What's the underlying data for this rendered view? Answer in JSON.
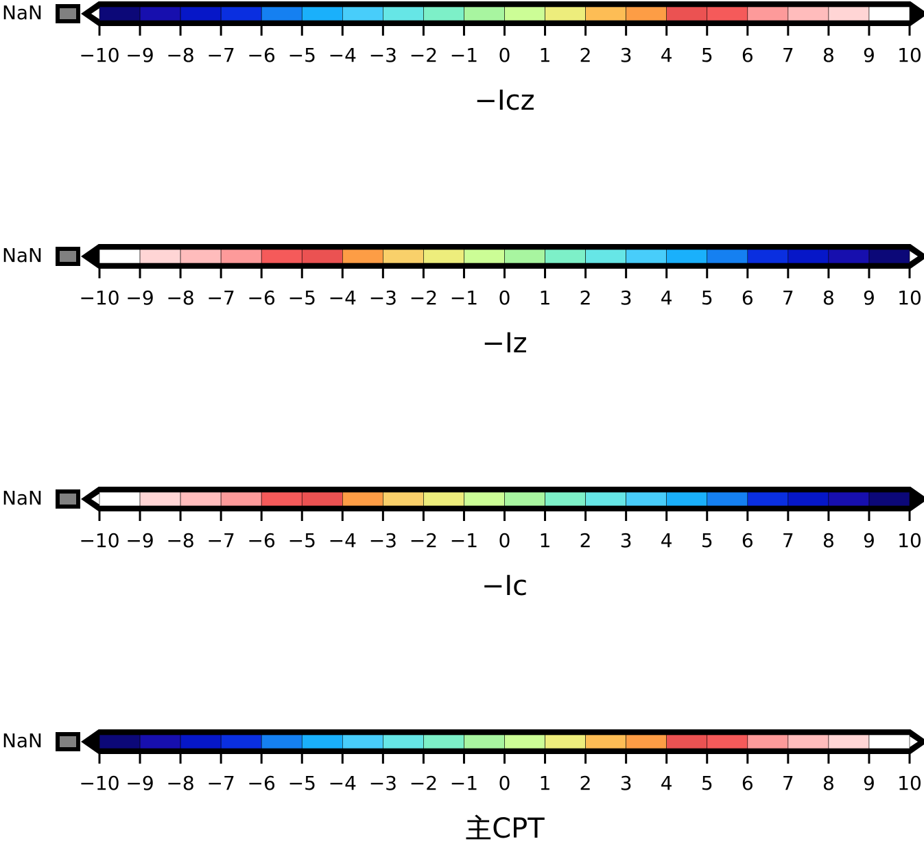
{
  "chart_data": [
    {
      "type": "colorbar",
      "nan_label": "NaN",
      "nan_color": "#808080",
      "title": "−Icz",
      "ticks": [
        -10,
        -9,
        -8,
        -7,
        -6,
        -5,
        -4,
        -3,
        -2,
        -1,
        0,
        1,
        2,
        3,
        4,
        5,
        6,
        7,
        8,
        9,
        10
      ],
      "tick_labels": [
        "−10",
        "−9",
        "−8",
        "−7",
        "−6",
        "−5",
        "−4",
        "−3",
        "−2",
        "−1",
        "0",
        "1",
        "2",
        "3",
        "4",
        "5",
        "6",
        "7",
        "8",
        "9",
        "10"
      ],
      "colors": [
        "#0c0878",
        "#170fae",
        "#0617c8",
        "#0a2fe0",
        "#1580f1",
        "#1ab0fb",
        "#48cdfa",
        "#66e6e6",
        "#7df0c8",
        "#a8f5a0",
        "#ccfd96",
        "#eded7c",
        "#fdbd55",
        "#fd9d45",
        "#eb5252",
        "#f55a5a",
        "#fd9a9a",
        "#ffbcbc",
        "#ffd5d5",
        "#ffffff"
      ],
      "left_triangle": "#ffffff",
      "right_triangle": "#000000"
    },
    {
      "type": "colorbar",
      "nan_label": "NaN",
      "nan_color": "#808080",
      "title": "−Iz",
      "ticks": [
        -10,
        -9,
        -8,
        -7,
        -6,
        -5,
        -4,
        -3,
        -2,
        -1,
        0,
        1,
        2,
        3,
        4,
        5,
        6,
        7,
        8,
        9,
        10
      ],
      "tick_labels": [
        "−10",
        "−9",
        "−8",
        "−7",
        "−6",
        "−5",
        "−4",
        "−3",
        "−2",
        "−1",
        "0",
        "1",
        "2",
        "3",
        "4",
        "5",
        "6",
        "7",
        "8",
        "9",
        "10"
      ],
      "colors": [
        "#ffffff",
        "#ffd5d5",
        "#ffbcbc",
        "#fd9a9a",
        "#f55a5a",
        "#eb5252",
        "#fd9d45",
        "#f9d06a",
        "#eded7c",
        "#ccfd96",
        "#a8f5a0",
        "#7df0c8",
        "#66e6e6",
        "#48cdfa",
        "#1ab0fb",
        "#1580f1",
        "#0a2fe0",
        "#0617c8",
        "#170fae",
        "#0c0878"
      ],
      "left_triangle": "#000000",
      "right_triangle": "#ffffff"
    },
    {
      "type": "colorbar",
      "nan_label": "NaN",
      "nan_color": "#808080",
      "title": "−Ic",
      "ticks": [
        -10,
        -9,
        -8,
        -7,
        -6,
        -5,
        -4,
        -3,
        -2,
        -1,
        0,
        1,
        2,
        3,
        4,
        5,
        6,
        7,
        8,
        9,
        10
      ],
      "tick_labels": [
        "−10",
        "−9",
        "−8",
        "−7",
        "−6",
        "−5",
        "−4",
        "−3",
        "−2",
        "−1",
        "0",
        "1",
        "2",
        "3",
        "4",
        "5",
        "6",
        "7",
        "8",
        "9",
        "10"
      ],
      "colors": [
        "#ffffff",
        "#ffd5d5",
        "#ffbcbc",
        "#fd9a9a",
        "#f55a5a",
        "#eb5252",
        "#fd9d45",
        "#f9d06a",
        "#eded7c",
        "#ccfd96",
        "#a8f5a0",
        "#7df0c8",
        "#66e6e6",
        "#48cdfa",
        "#1ab0fb",
        "#1580f1",
        "#0a2fe0",
        "#0617c8",
        "#170fae",
        "#0c0878"
      ],
      "left_triangle": "#ffffff",
      "right_triangle": "#000000"
    },
    {
      "type": "colorbar",
      "nan_label": "NaN",
      "nan_color": "#808080",
      "title": "主CPT",
      "ticks": [
        -10,
        -9,
        -8,
        -7,
        -6,
        -5,
        -4,
        -3,
        -2,
        -1,
        0,
        1,
        2,
        3,
        4,
        5,
        6,
        7,
        8,
        9,
        10
      ],
      "tick_labels": [
        "−10",
        "−9",
        "−8",
        "−7",
        "−6",
        "−5",
        "−4",
        "−3",
        "−2",
        "−1",
        "0",
        "1",
        "2",
        "3",
        "4",
        "5",
        "6",
        "7",
        "8",
        "9",
        "10"
      ],
      "colors": [
        "#0c0878",
        "#170fae",
        "#0617c8",
        "#0a2fe0",
        "#1580f1",
        "#1ab0fb",
        "#48cdfa",
        "#66e6e6",
        "#7df0c8",
        "#a8f5a0",
        "#ccfd96",
        "#eded7c",
        "#fdbd55",
        "#fd9d45",
        "#eb5252",
        "#f55a5a",
        "#fd9a9a",
        "#ffbcbc",
        "#ffd5d5",
        "#ffffff"
      ],
      "left_triangle": "#000000",
      "right_triangle": "#ffffff"
    }
  ]
}
